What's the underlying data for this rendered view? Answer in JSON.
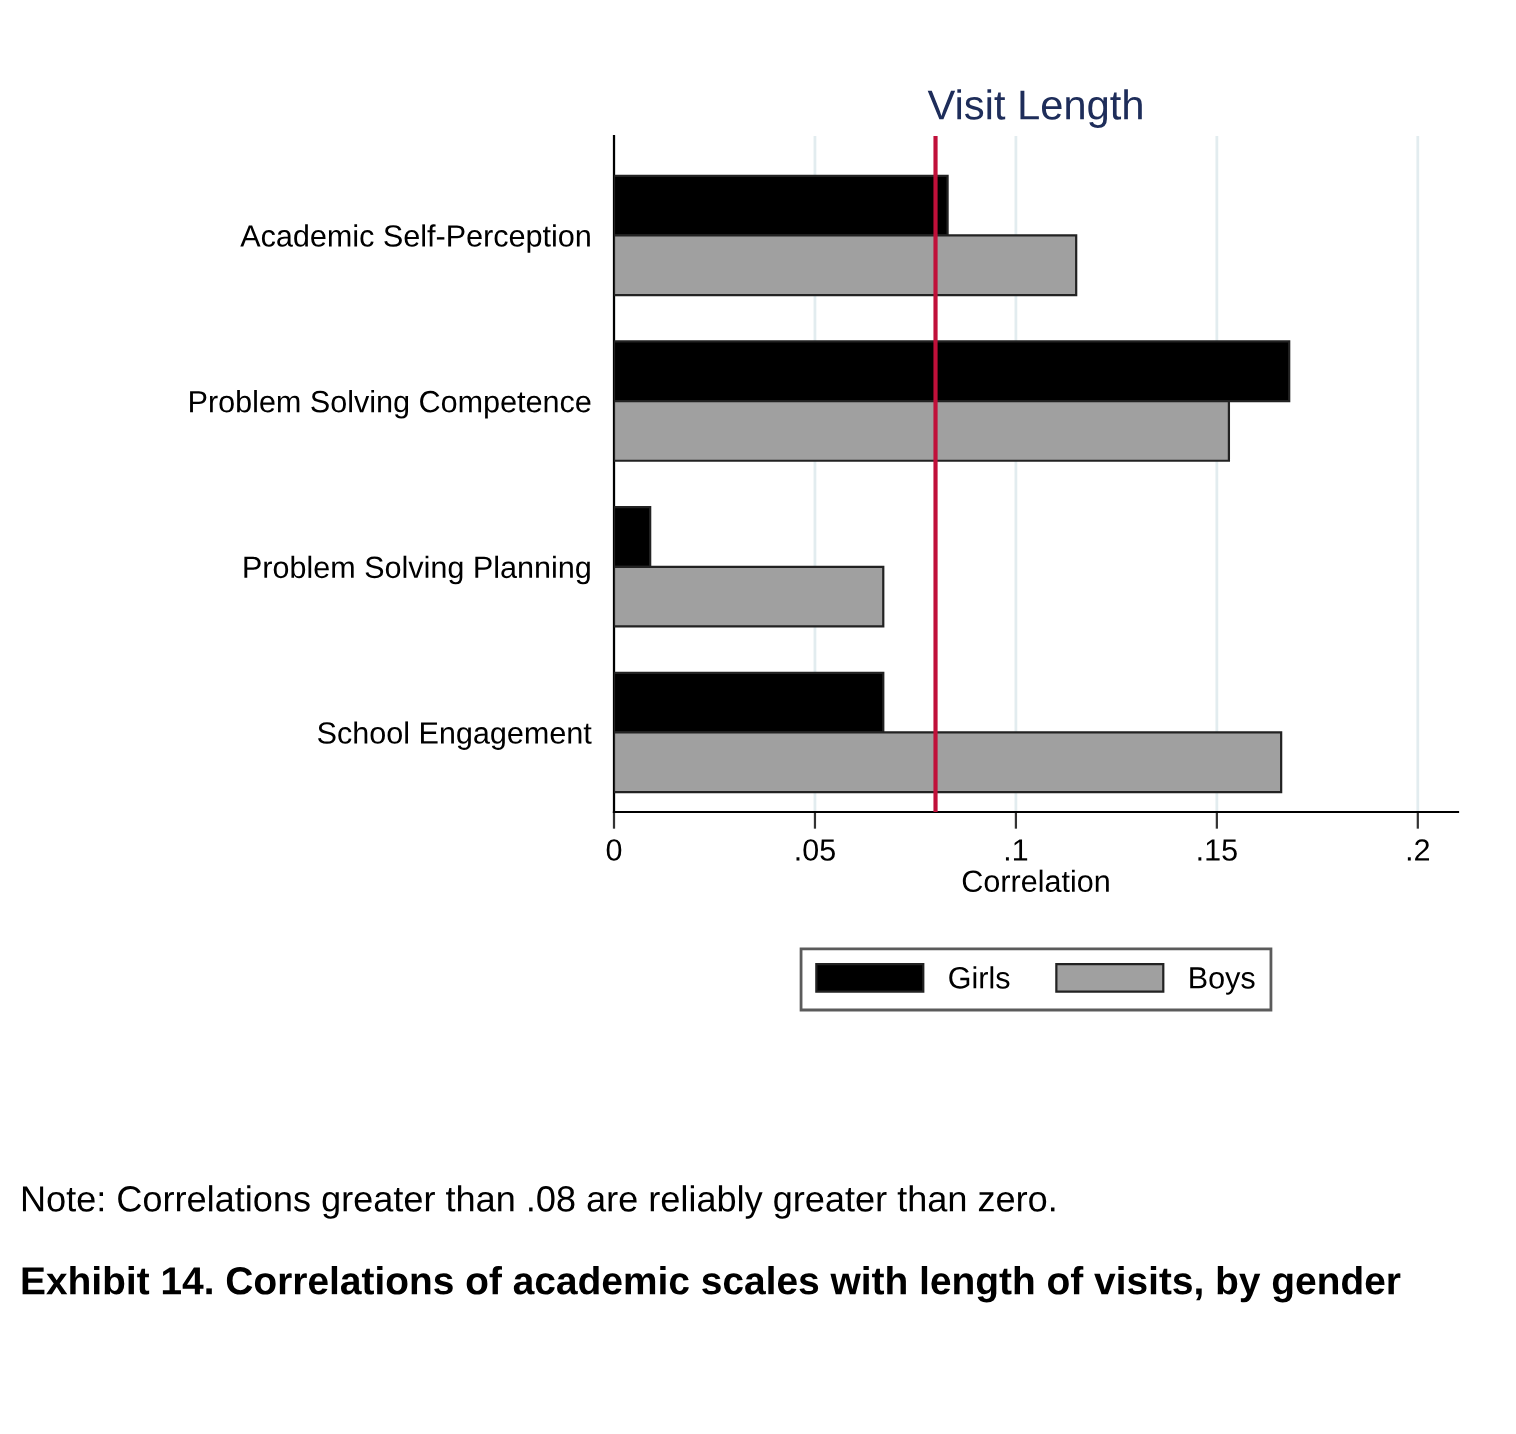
{
  "chart_data": {
    "type": "bar",
    "orientation": "horizontal",
    "title": "Visit Length",
    "xlabel": "Correlation",
    "categories": [
      "Academic Self-Perception",
      "Problem Solving Competence",
      "Problem Solving Planning",
      "School Engagement"
    ],
    "series": [
      {
        "name": "Girls",
        "color": "#000000",
        "values": [
          0.083,
          0.168,
          0.009,
          0.067
        ]
      },
      {
        "name": "Boys",
        "color": "#a0a0a0",
        "values": [
          0.115,
          0.153,
          0.067,
          0.166
        ]
      }
    ],
    "xlim": [
      0,
      0.21
    ],
    "xticks": [
      {
        "value": 0,
        "label": "0"
      },
      {
        "value": 0.05,
        "label": ".05"
      },
      {
        "value": 0.1,
        "label": ".1"
      },
      {
        "value": 0.15,
        "label": ".15"
      },
      {
        "value": 0.2,
        "label": ".2"
      }
    ],
    "ref_lines": [
      {
        "axis": "x",
        "value": 0.08,
        "color": "#c0103a"
      }
    ],
    "grid": "x",
    "legend": "bottom",
    "annotations": [
      "Note: Correlations greater than .08 are reliably greater than zero.",
      "Exhibit 14. Correlations of academic scales with length of visits, by gender"
    ]
  }
}
